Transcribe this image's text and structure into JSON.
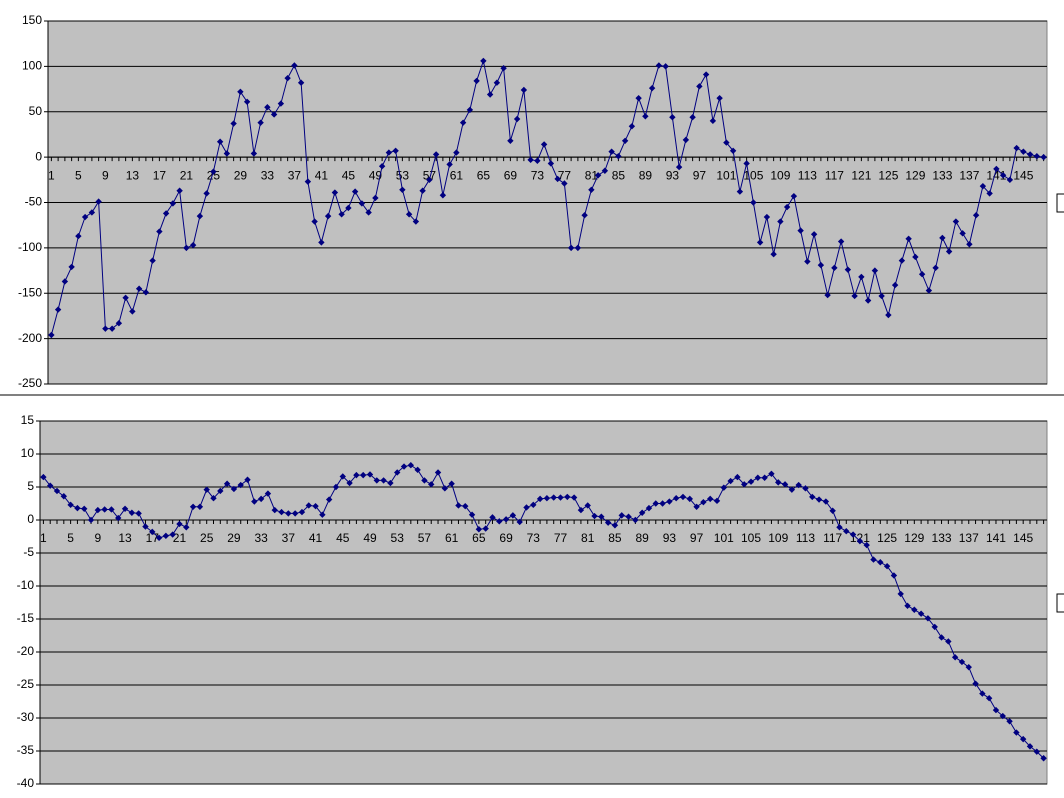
{
  "chart_data": [
    {
      "type": "line",
      "color": "#000080",
      "grid": true,
      "ylim": [
        -250,
        150
      ],
      "yticks": [
        -250,
        -200,
        -150,
        -100,
        -50,
        0,
        50,
        100,
        150
      ],
      "categories": [
        1,
        null,
        null,
        null,
        5,
        null,
        null,
        null,
        9,
        null,
        null,
        null,
        13,
        null,
        null,
        null,
        17,
        null,
        null,
        null,
        21,
        null,
        null,
        null,
        25,
        null,
        null,
        null,
        29,
        null,
        null,
        null,
        33,
        null,
        null,
        null,
        37,
        null,
        null,
        null,
        41,
        null,
        null,
        null,
        45,
        null,
        null,
        null,
        49,
        null,
        null,
        null,
        53,
        null,
        null,
        null,
        57,
        null,
        null,
        null,
        61,
        null,
        null,
        null,
        65,
        null,
        null,
        null,
        69,
        null,
        null,
        null,
        73,
        null,
        null,
        null,
        77,
        null,
        null,
        null,
        81,
        null,
        null,
        null,
        85,
        null,
        null,
        null,
        89,
        null,
        null,
        null,
        93,
        null,
        null,
        null,
        97,
        null,
        null,
        null,
        101,
        null,
        null,
        null,
        105,
        null,
        null,
        null,
        109,
        null,
        null,
        null,
        113,
        null,
        null,
        null,
        117,
        null,
        null,
        null,
        121,
        null,
        null,
        null,
        125,
        null,
        null,
        null,
        129,
        null,
        null,
        null,
        133,
        null,
        null,
        null,
        137,
        null,
        null,
        null,
        141,
        null,
        null,
        null,
        145,
        null,
        null,
        null
      ],
      "values": [
        -196,
        -168,
        -137,
        -121,
        -87,
        -66,
        -61,
        -49,
        -189,
        -189,
        -183,
        -155,
        -170,
        -145,
        -149,
        -114,
        -82,
        -62,
        -51,
        -37,
        -100,
        -97,
        -65,
        -40,
        -16,
        17,
        4,
        37,
        72,
        61,
        4,
        38,
        55,
        47,
        59,
        87,
        101,
        82,
        -27,
        -71,
        -94,
        -65,
        -39,
        -63,
        -56,
        -38,
        -51,
        -61,
        -45,
        -10,
        5,
        7,
        -36,
        -63,
        -71,
        -37,
        -25,
        3,
        -42,
        -8,
        5,
        38,
        52,
        84,
        106,
        69,
        82,
        98,
        18,
        42,
        74,
        -3,
        -4,
        14,
        -7,
        -24,
        -29,
        -100,
        -100,
        -64,
        -36,
        -20,
        -15,
        6,
        1,
        18,
        34,
        65,
        45,
        76,
        101,
        100,
        44,
        -11,
        19,
        44,
        78,
        91,
        40,
        65,
        16,
        7,
        -38,
        -7,
        -50,
        -94,
        -66,
        -107,
        -71,
        -55,
        -43,
        -81,
        -115,
        -85,
        -119,
        -152,
        -122,
        -93,
        -124,
        -153,
        -132,
        -158,
        -125,
        -153,
        -174,
        -141,
        -114,
        -90,
        -110,
        -129,
        -147,
        -122,
        -89,
        -104,
        -71,
        -84,
        -96,
        -64,
        -32,
        -40,
        -13,
        -20,
        -25,
        10,
        6,
        3,
        1,
        0
      ]
    },
    {
      "type": "line",
      "color": "#000080",
      "grid": true,
      "ylim": [
        -40,
        15
      ],
      "yticks": [
        -40,
        -35,
        -30,
        -25,
        -20,
        -15,
        -10,
        -5,
        0,
        5,
        10,
        15
      ],
      "categories": [
        1,
        null,
        null,
        null,
        5,
        null,
        null,
        null,
        9,
        null,
        null,
        null,
        13,
        null,
        null,
        null,
        17,
        null,
        null,
        null,
        21,
        null,
        null,
        null,
        25,
        null,
        null,
        null,
        29,
        null,
        null,
        null,
        33,
        null,
        null,
        null,
        37,
        null,
        null,
        null,
        41,
        null,
        null,
        null,
        45,
        null,
        null,
        null,
        49,
        null,
        null,
        null,
        53,
        null,
        null,
        null,
        57,
        null,
        null,
        null,
        61,
        null,
        null,
        null,
        65,
        null,
        null,
        null,
        69,
        null,
        null,
        null,
        73,
        null,
        null,
        null,
        77,
        null,
        null,
        null,
        81,
        null,
        null,
        null,
        85,
        null,
        null,
        null,
        89,
        null,
        null,
        null,
        93,
        null,
        null,
        null,
        97,
        null,
        null,
        null,
        101,
        null,
        null,
        null,
        105,
        null,
        null,
        null,
        109,
        null,
        null,
        null,
        113,
        null,
        null,
        null,
        117,
        null,
        null,
        null,
        121,
        null,
        null,
        null,
        125,
        null,
        null,
        null,
        129,
        null,
        null,
        null,
        133,
        null,
        null,
        null,
        137,
        null,
        null,
        null,
        141,
        null,
        null,
        null,
        145,
        null,
        null,
        null
      ],
      "values": [
        6.5,
        5.2,
        4.4,
        3.6,
        2.3,
        1.8,
        1.7,
        0,
        1.5,
        1.6,
        1.6,
        0.3,
        1.7,
        1.1,
        1.0,
        -1.0,
        -1.8,
        -2.7,
        -2.4,
        -2.2,
        -0.6,
        -1.1,
        2.0,
        2.0,
        4.6,
        3.3,
        4.4,
        5.5,
        4.7,
        5.3,
        6.1,
        2.8,
        3.2,
        4.0,
        1.5,
        1.2,
        1.0,
        1.0,
        1.2,
        2.2,
        2.1,
        0.8,
        3.1,
        5.0,
        6.6,
        5.6,
        6.8,
        6.8,
        6.9,
        6.0,
        6.0,
        5.6,
        7.2,
        8.1,
        8.3,
        7.6,
        6.0,
        5.4,
        7.2,
        4.8,
        5.5,
        2.2,
        2.1,
        0.8,
        -1.4,
        -1.3,
        0.4,
        -0.2,
        0.1,
        0.7,
        -0.3,
        1.9,
        2.3,
        3.2,
        3.3,
        3.4,
        3.4,
        3.5,
        3.4,
        1.5,
        2.2,
        0.6,
        0.5,
        -0.4,
        -0.8,
        0.7,
        0.5,
        0,
        1.1,
        1.8,
        2.5,
        2.5,
        2.8,
        3.3,
        3.5,
        3.2,
        2.0,
        2.7,
        3.2,
        2.9,
        4.9,
        5.9,
        6.5,
        5.4,
        5.8,
        6.4,
        6.4,
        7.0,
        5.7,
        5.4,
        4.6,
        5.3,
        4.8,
        3.5,
        3.1,
        2.8,
        1.4,
        -1.1,
        -1.7,
        -2.2,
        -3.2,
        -3.8,
        -6.0,
        -6.4,
        -7.0,
        -8.4,
        -11.2,
        -13.0,
        -13.6,
        -14.2,
        -14.9,
        -16.2,
        -17.8,
        -18.4,
        -20.8,
        -21.5,
        -22.3,
        -24.8,
        -26.3,
        -27.0,
        -28.8,
        -29.7,
        -30.5,
        -32.2,
        -33.2,
        -34.3,
        -35.1,
        -36.1
      ]
    }
  ]
}
